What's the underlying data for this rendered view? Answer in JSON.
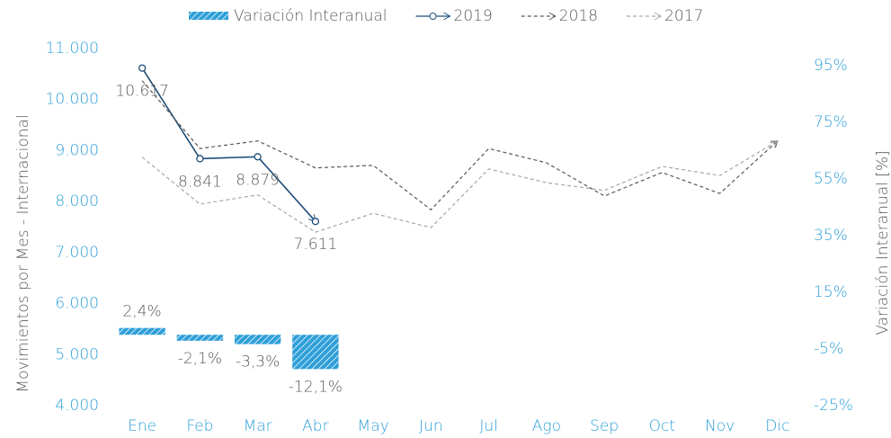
{
  "chart_data": {
    "type": "combo",
    "categories": [
      "Ene",
      "Feb",
      "Mar",
      "Abr",
      "May",
      "Jun",
      "Jul",
      "Ago",
      "Sep",
      "Oct",
      "Nov",
      "Dic"
    ],
    "ylabel": "Movimientos por Mes - Internacional",
    "y2label": "Variación Interanual [%]",
    "ylim": [
      4000,
      11000
    ],
    "yticks": [
      {
        "value": 4000,
        "label": "4.000"
      },
      {
        "value": 5000,
        "label": "5.000"
      },
      {
        "value": 6000,
        "label": "6.000"
      },
      {
        "value": 7000,
        "label": "7.000"
      },
      {
        "value": 8000,
        "label": "8.000"
      },
      {
        "value": 9000,
        "label": "9.000"
      },
      {
        "value": 10000,
        "label": "10.000"
      },
      {
        "value": 11000,
        "label": "11.000"
      }
    ],
    "y2lim": [
      -25,
      101
    ],
    "y2ticks": [
      {
        "value": -25,
        "label": "-25%"
      },
      {
        "value": -5,
        "label": "-5%"
      },
      {
        "value": 15,
        "label": "15%"
      },
      {
        "value": 35,
        "label": "35%"
      },
      {
        "value": 55,
        "label": "55%"
      },
      {
        "value": 75,
        "label": "75%"
      },
      {
        "value": 95,
        "label": "95%"
      }
    ],
    "series": [
      {
        "name": "Variación Interanual",
        "type": "bar",
        "axis": "y2",
        "color": "#2e9fd8",
        "values": [
          2.4,
          -2.1,
          -3.3,
          -12.1,
          null,
          null,
          null,
          null,
          null,
          null,
          null,
          null
        ],
        "value_labels": [
          "2,4%",
          "-2,1%",
          "-3,3%",
          "-12,1%",
          null,
          null,
          null,
          null,
          null,
          null,
          null,
          null
        ]
      },
      {
        "name": "2019",
        "type": "line",
        "color": "#1f4e79",
        "dash": false,
        "markers": true,
        "values": [
          10617,
          8841,
          8879,
          7611,
          null,
          null,
          null,
          null,
          null,
          null,
          null,
          null
        ],
        "value_labels": [
          "10.617",
          "8.841",
          "8.879",
          "7.611",
          null,
          null,
          null,
          null,
          null,
          null,
          null,
          null
        ]
      },
      {
        "name": "2018",
        "type": "line",
        "color": "#595959",
        "dash": true,
        "markers": false,
        "values": [
          10370,
          9040,
          9190,
          8660,
          8710,
          7840,
          9040,
          8760,
          8110,
          8570,
          8160,
          9190
        ]
      },
      {
        "name": "2017",
        "type": "line",
        "color": "#a6a6a6",
        "dash": true,
        "markers": false,
        "values": [
          8870,
          7950,
          8130,
          7400,
          7770,
          7490,
          8640,
          8370,
          8220,
          8690,
          8510,
          9190
        ]
      }
    ]
  }
}
